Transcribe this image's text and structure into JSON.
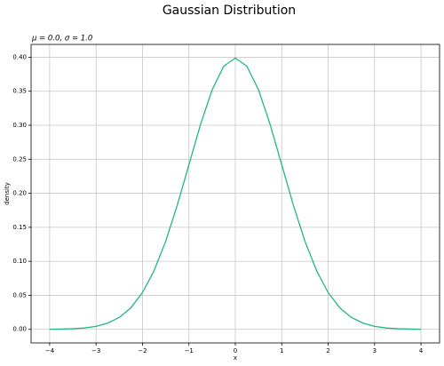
{
  "chart_data": {
    "type": "line",
    "title": "Gaussian Distribution",
    "subtitle": "μ = 0.0, σ = 1.0",
    "xlabel": "x",
    "ylabel": "density",
    "x": [
      -4,
      -3.75,
      -3.5,
      -3.25,
      -3,
      -2.75,
      -2.5,
      -2.25,
      -2,
      -1.75,
      -1.5,
      -1.25,
      -1,
      -0.75,
      -0.5,
      -0.25,
      0,
      0.25,
      0.5,
      0.75,
      1,
      1.25,
      1.5,
      1.75,
      2,
      2.25,
      2.5,
      2.75,
      3,
      3.25,
      3.5,
      3.75,
      4
    ],
    "series": [
      {
        "name": "density",
        "color": "#22b58a",
        "values": [
          0.0001,
          0.0004,
          0.0009,
          0.002,
          0.0044,
          0.0091,
          0.0175,
          0.0317,
          0.054,
          0.0863,
          0.1295,
          0.1826,
          0.242,
          0.3011,
          0.3521,
          0.3867,
          0.3989,
          0.3867,
          0.3521,
          0.3011,
          0.242,
          0.1826,
          0.1295,
          0.0863,
          0.054,
          0.0317,
          0.0175,
          0.0091,
          0.0044,
          0.002,
          0.0009,
          0.0004,
          0.0001
        ]
      }
    ],
    "xlim": [
      -4.4,
      4.4
    ],
    "xticks": [
      {
        "value": -4,
        "label": "−4"
      },
      {
        "value": -3,
        "label": "−3"
      },
      {
        "value": -2,
        "label": "−2"
      },
      {
        "value": -1,
        "label": "−1"
      },
      0,
      1,
      2,
      3,
      4
    ],
    "ylim": [
      -0.01995,
      0.41884
    ],
    "yticks": [
      {
        "value": 0,
        "label": "0.00"
      },
      {
        "value": 0.05,
        "label": "0.05"
      },
      {
        "value": 0.1,
        "label": "0.10"
      },
      {
        "value": 0.15,
        "label": "0.15"
      },
      {
        "value": 0.2,
        "label": "0.20"
      },
      {
        "value": 0.25,
        "label": "0.25"
      },
      {
        "value": 0.3,
        "label": "0.30"
      },
      {
        "value": 0.35,
        "label": "0.35"
      },
      {
        "value": 0.4,
        "label": "0.40"
      }
    ],
    "grid": true
  }
}
